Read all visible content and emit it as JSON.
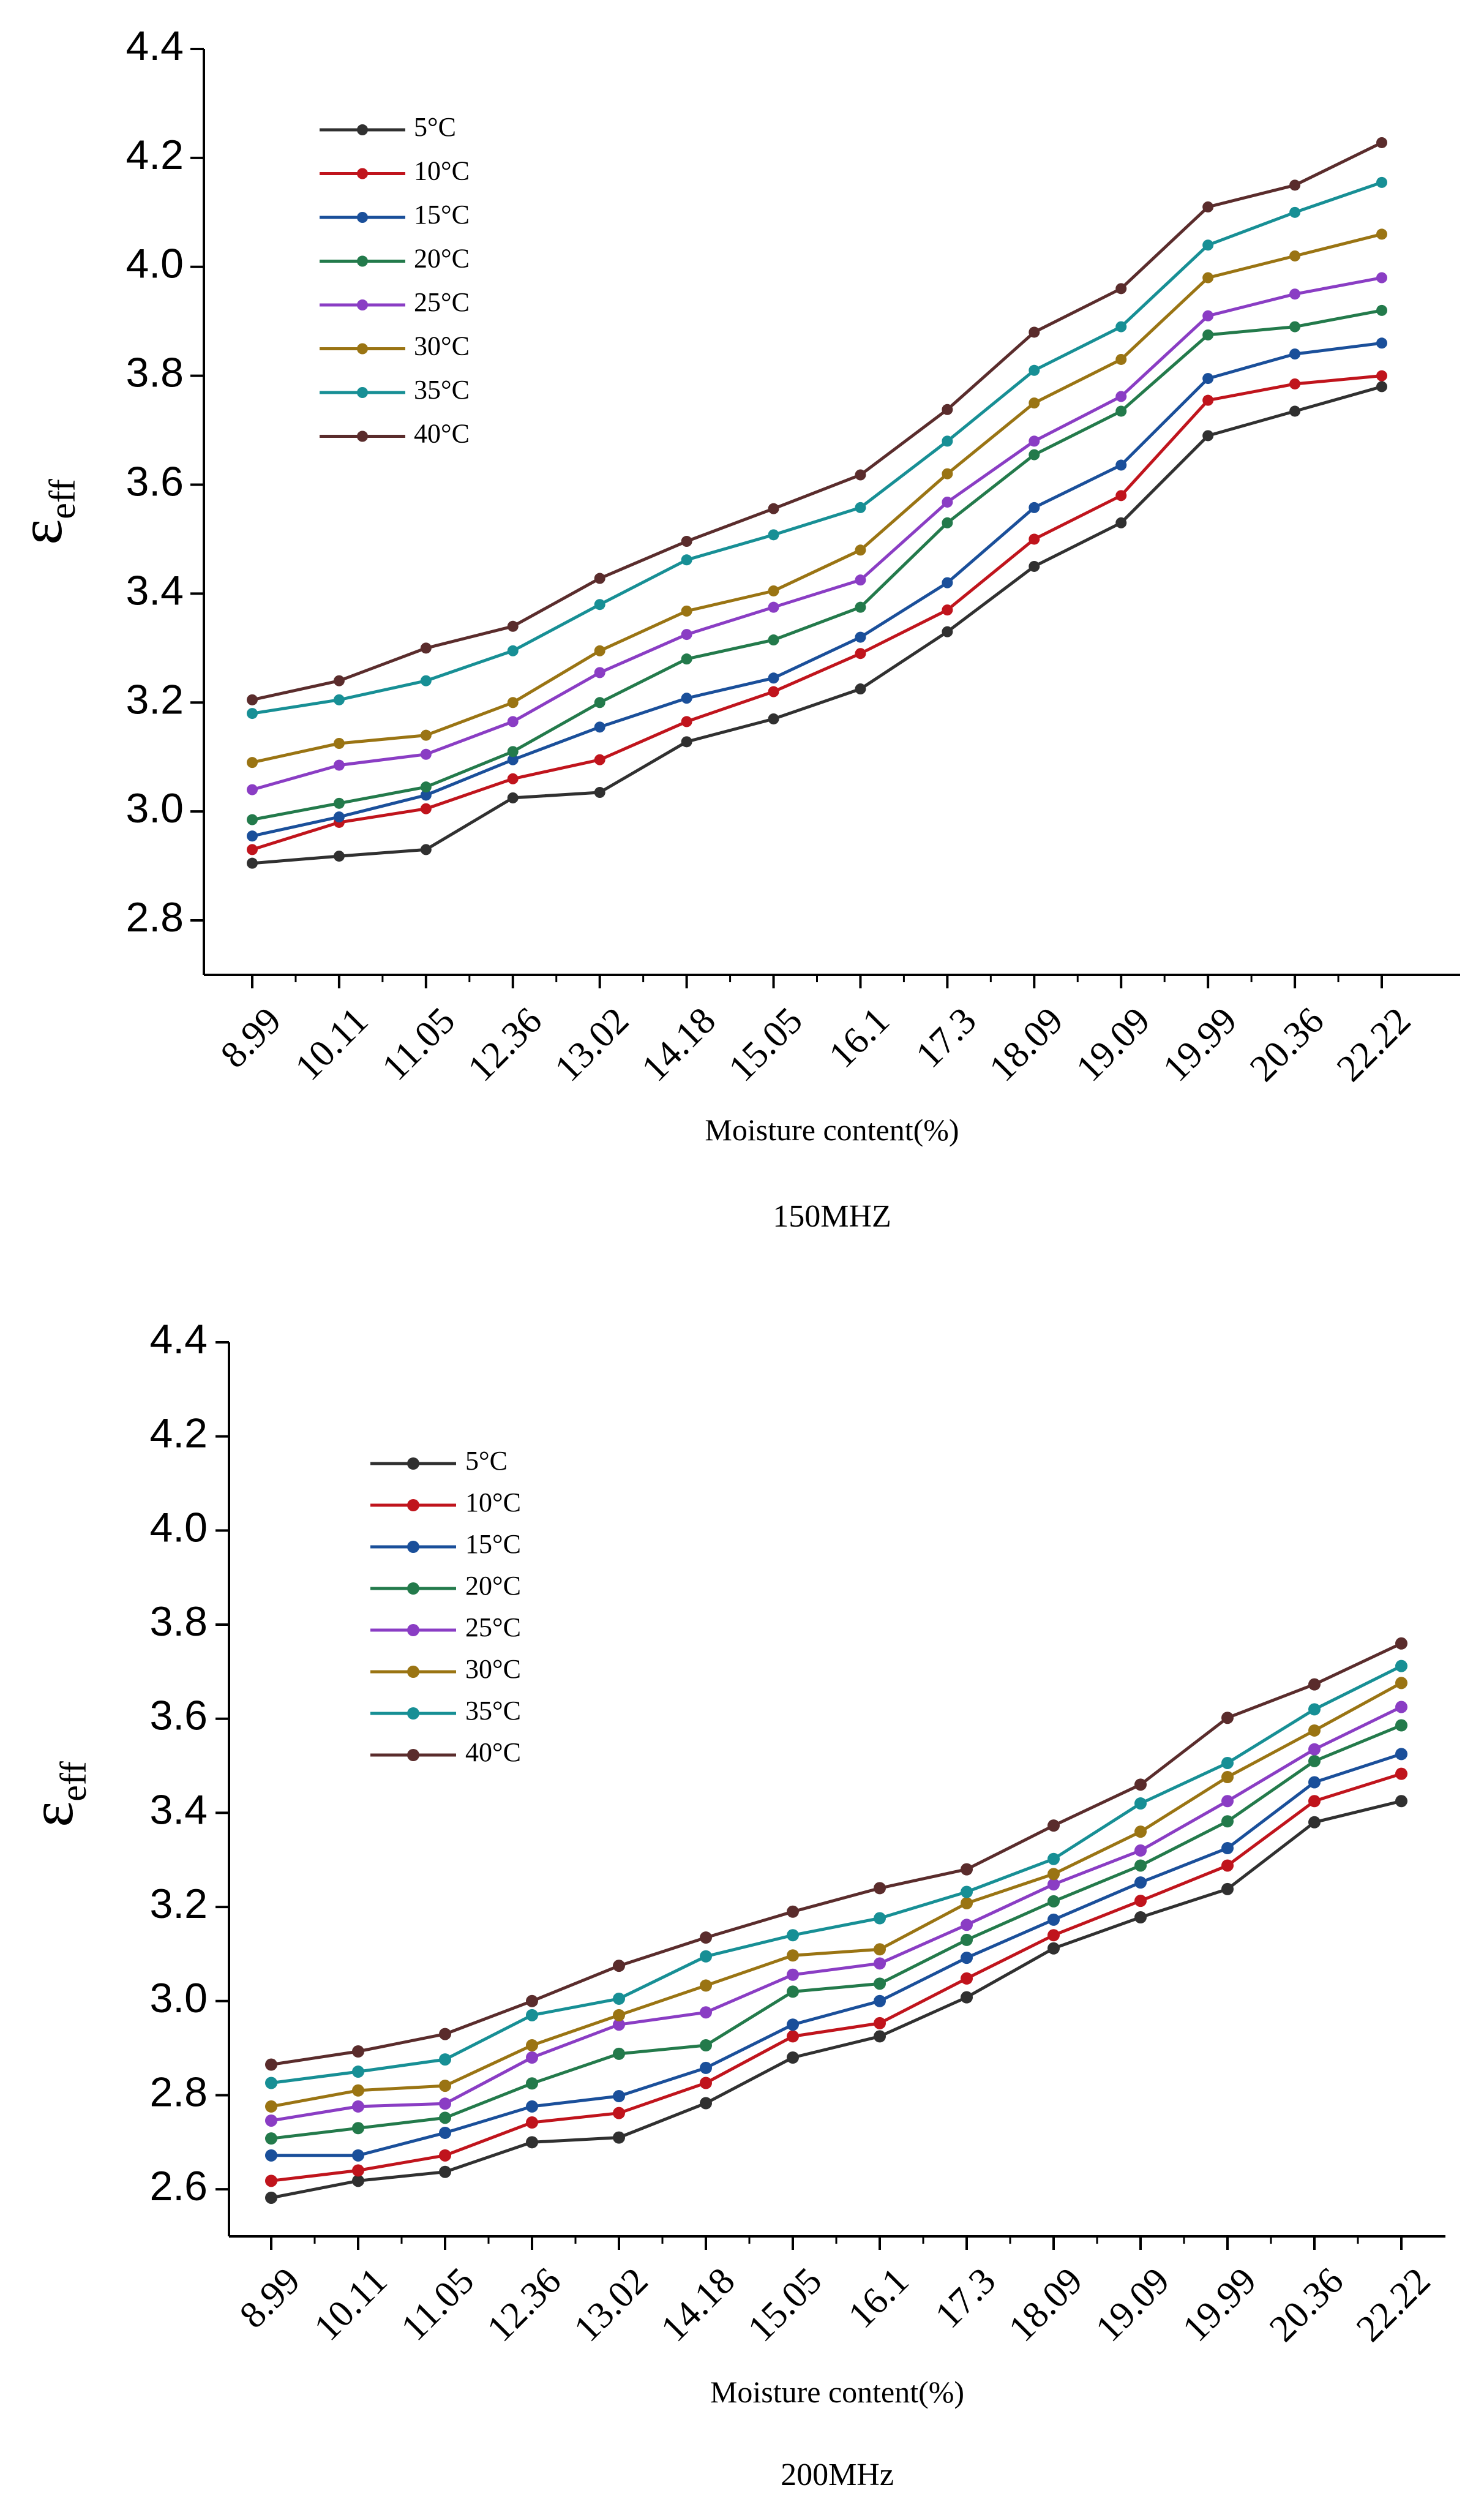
{
  "chart_data": [
    {
      "type": "line",
      "caption": "150MHZ",
      "xlabel": "Moisture content(%)",
      "ylabel": {
        "main": "ε",
        "sub": "eff"
      },
      "ylim": [
        2.7,
        4.4
      ],
      "yticks": [
        2.8,
        3.0,
        3.2,
        3.4,
        3.6,
        3.8,
        4.0,
        4.2,
        4.4
      ],
      "ytick_labels": [
        "2.8",
        "3.0",
        "3.2",
        "3.4",
        "3.6",
        "3.8",
        "4.0",
        "4.2",
        "4.4"
      ],
      "categories": [
        "8.99",
        "10.11",
        "11.05",
        "12.36",
        "13.02",
        "14.18",
        "15.05",
        "16.1",
        "17.3",
        "18.09",
        "19.09",
        "19.99",
        "20.36",
        "22.22"
      ],
      "legend_position": "top-left",
      "series": [
        {
          "name": "5°C",
          "color": "#303030",
          "values": [
            2.905,
            2.918,
            2.93,
            3.025,
            3.035,
            3.128,
            3.17,
            3.225,
            3.33,
            3.45,
            3.53,
            3.69,
            3.735,
            3.78
          ]
        },
        {
          "name": "10°C",
          "color": "#c0141c",
          "values": [
            2.93,
            2.98,
            3.005,
            3.06,
            3.095,
            3.165,
            3.22,
            3.29,
            3.37,
            3.5,
            3.58,
            3.755,
            3.785,
            3.8
          ]
        },
        {
          "name": "15°C",
          "color": "#1a4f9a",
          "values": [
            2.955,
            2.99,
            3.03,
            3.095,
            3.155,
            3.208,
            3.245,
            3.32,
            3.42,
            3.558,
            3.636,
            3.795,
            3.84,
            3.86
          ]
        },
        {
          "name": "20°C",
          "color": "#237a4b",
          "values": [
            2.985,
            3.015,
            3.045,
            3.11,
            3.2,
            3.28,
            3.315,
            3.375,
            3.53,
            3.655,
            3.735,
            3.875,
            3.89,
            3.92
          ]
        },
        {
          "name": "25°C",
          "color": "#8a3dc4",
          "values": [
            3.04,
            3.085,
            3.105,
            3.165,
            3.255,
            3.325,
            3.375,
            3.425,
            3.568,
            3.68,
            3.762,
            3.91,
            3.95,
            3.98
          ]
        },
        {
          "name": "30°C",
          "color": "#9a7413",
          "values": [
            3.09,
            3.125,
            3.14,
            3.2,
            3.295,
            3.368,
            3.405,
            3.48,
            3.62,
            3.75,
            3.83,
            3.98,
            4.02,
            4.06
          ]
        },
        {
          "name": "35°C",
          "color": "#178f95",
          "values": [
            3.18,
            3.205,
            3.24,
            3.295,
            3.38,
            3.462,
            3.508,
            3.558,
            3.68,
            3.81,
            3.89,
            4.04,
            4.1,
            4.155
          ]
        },
        {
          "name": "40°C",
          "color": "#5a2c2c",
          "values": [
            3.205,
            3.24,
            3.3,
            3.34,
            3.428,
            3.496,
            3.556,
            3.618,
            3.738,
            3.88,
            3.96,
            4.11,
            4.15,
            4.228
          ]
        }
      ]
    },
    {
      "type": "line",
      "caption": "200MHz",
      "xlabel": "Moisture content(%)",
      "ylabel": {
        "main": "ε",
        "sub": "eff"
      },
      "ylim": [
        2.5,
        4.4
      ],
      "yticks": [
        2.6,
        2.8,
        3.0,
        3.2,
        3.4,
        3.6,
        3.8,
        4.0,
        4.2,
        4.4
      ],
      "ytick_labels": [
        "2.6",
        "2.8",
        "3.0",
        "3.2",
        "3.4",
        "3.6",
        "3.8",
        "4.0",
        "4.2",
        "4.4"
      ],
      "categories": [
        "8.99",
        "10.11",
        "11.05",
        "12.36",
        "13.02",
        "14.18",
        "15.05",
        "16.1",
        "17.3",
        "18.09",
        "19.09",
        "19.99",
        "20.36",
        "22.22"
      ],
      "legend_position": "top-left",
      "series": [
        {
          "name": "5°C",
          "color": "#303030",
          "values": [
            2.582,
            2.618,
            2.637,
            2.7,
            2.71,
            2.783,
            2.88,
            2.925,
            3.008,
            3.112,
            3.178,
            3.238,
            3.38,
            3.425
          ]
        },
        {
          "name": "10°C",
          "color": "#c0141c",
          "values": [
            2.618,
            2.64,
            2.672,
            2.742,
            2.762,
            2.826,
            2.925,
            2.953,
            3.048,
            3.14,
            3.213,
            3.288,
            3.425,
            3.483
          ]
        },
        {
          "name": "15°C",
          "color": "#1a4f9a",
          "values": [
            2.672,
            2.672,
            2.72,
            2.776,
            2.798,
            2.858,
            2.95,
            3.0,
            3.092,
            3.173,
            3.252,
            3.325,
            3.465,
            3.525
          ]
        },
        {
          "name": "20°C",
          "color": "#237a4b",
          "values": [
            2.708,
            2.73,
            2.752,
            2.825,
            2.888,
            2.906,
            3.02,
            3.037,
            3.13,
            3.212,
            3.288,
            3.382,
            3.51,
            3.586
          ]
        },
        {
          "name": "25°C",
          "color": "#8a3dc4",
          "values": [
            2.746,
            2.776,
            2.782,
            2.88,
            2.95,
            2.976,
            3.056,
            3.08,
            3.162,
            3.248,
            3.32,
            3.425,
            3.535,
            3.625
          ]
        },
        {
          "name": "30°C",
          "color": "#9a7413",
          "values": [
            2.776,
            2.81,
            2.82,
            2.906,
            2.97,
            3.033,
            3.097,
            3.11,
            3.208,
            3.27,
            3.36,
            3.476,
            3.575,
            3.676
          ]
        },
        {
          "name": "35°C",
          "color": "#178f95",
          "values": [
            2.826,
            2.85,
            2.876,
            2.97,
            3.005,
            3.095,
            3.14,
            3.176,
            3.232,
            3.302,
            3.42,
            3.506,
            3.62,
            3.712
          ]
        },
        {
          "name": "40°C",
          "color": "#5a2c2c",
          "values": [
            2.865,
            2.893,
            2.93,
            3.0,
            3.075,
            3.135,
            3.19,
            3.24,
            3.28,
            3.373,
            3.46,
            3.602,
            3.673,
            3.76
          ]
        }
      ]
    }
  ]
}
